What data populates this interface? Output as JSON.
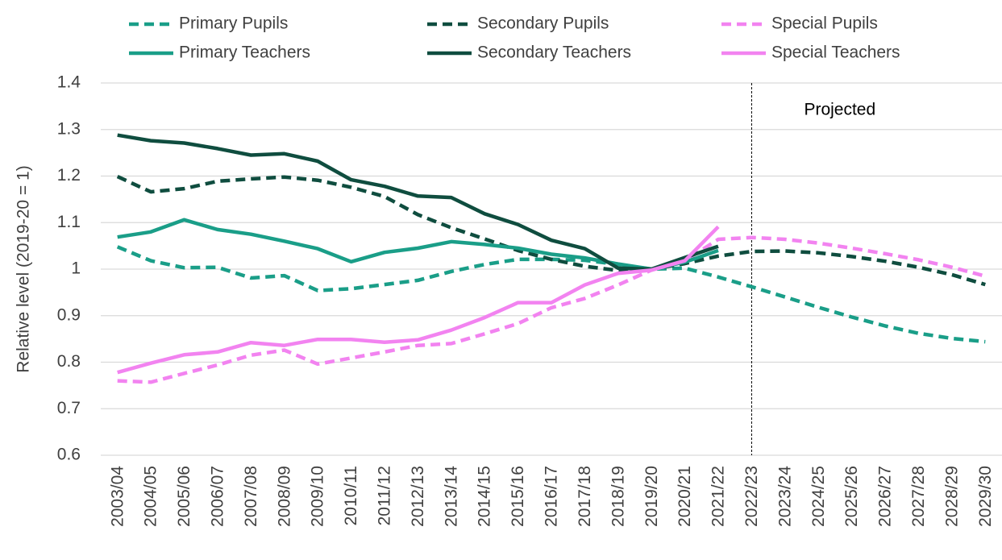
{
  "chart_data": {
    "type": "line",
    "y_label": "Relative level (2019-20 = 1)",
    "categories": [
      "2003/04",
      "2004/05",
      "2005/06",
      "2006/07",
      "2007/08",
      "2008/09",
      "2009/10",
      "2010/11",
      "2011/12",
      "2012/13",
      "2013/14",
      "2014/15",
      "2015/16",
      "2016/17",
      "2017/18",
      "2018/19",
      "2019/20",
      "2020/21",
      "2021/22",
      "2022/23",
      "2023/24",
      "2024/25",
      "2025/26",
      "2026/27",
      "2027/28",
      "2028/29",
      "2029/30"
    ],
    "series": [
      {
        "name": "Primary Pupils",
        "color": "#1a9e88",
        "dashed": true,
        "values": [
          1.048,
          1.018,
          1.003,
          1.004,
          0.981,
          0.986,
          0.954,
          0.958,
          0.967,
          0.976,
          0.995,
          1.01,
          1.021,
          1.021,
          1.019,
          1.01,
          1.0,
          1.002,
          0.983,
          0.962,
          0.94,
          0.918,
          0.897,
          0.878,
          0.862,
          0.851,
          0.844
        ]
      },
      {
        "name": "Secondary Pupils",
        "color": "#0f4d3f",
        "dashed": true,
        "values": [
          1.199,
          1.166,
          1.173,
          1.189,
          1.194,
          1.198,
          1.191,
          1.176,
          1.156,
          1.117,
          1.089,
          1.065,
          1.04,
          1.021,
          1.006,
          0.997,
          1.0,
          1.012,
          1.028,
          1.038,
          1.039,
          1.035,
          1.027,
          1.017,
          1.004,
          0.988,
          0.967
        ]
      },
      {
        "name": "Special Pupils",
        "color": "#f283f0",
        "dashed": true,
        "values": [
          0.76,
          0.757,
          0.776,
          0.794,
          0.815,
          0.826,
          0.796,
          0.809,
          0.822,
          0.836,
          0.84,
          0.861,
          0.883,
          0.917,
          0.937,
          0.966,
          0.998,
          1.018,
          1.064,
          1.068,
          1.064,
          1.056,
          1.045,
          1.033,
          1.02,
          1.004,
          0.985
        ]
      },
      {
        "name": "Primary Teachers",
        "color": "#1a9e88",
        "dashed": false,
        "values": [
          1.069,
          1.08,
          1.106,
          1.085,
          1.075,
          1.06,
          1.044,
          1.016,
          1.036,
          1.045,
          1.059,
          1.053,
          1.045,
          1.032,
          1.024,
          1.011,
          1.0,
          1.015,
          1.04,
          null,
          null,
          null,
          null,
          null,
          null,
          null,
          null
        ]
      },
      {
        "name": "Secondary Teachers",
        "color": "#0f4d3f",
        "dashed": false,
        "values": [
          1.288,
          1.276,
          1.271,
          1.259,
          1.245,
          1.248,
          1.232,
          1.192,
          1.178,
          1.157,
          1.154,
          1.119,
          1.096,
          1.062,
          1.044,
          1.002,
          1.0,
          1.025,
          1.049,
          null,
          null,
          null,
          null,
          null,
          null,
          null,
          null
        ]
      },
      {
        "name": "Special Teachers",
        "color": "#f283f0",
        "dashed": false,
        "values": [
          0.778,
          0.798,
          0.816,
          0.822,
          0.842,
          0.836,
          0.849,
          0.849,
          0.843,
          0.848,
          0.869,
          0.896,
          0.928,
          0.928,
          0.966,
          0.991,
          0.998,
          1.018,
          1.091,
          null,
          null,
          null,
          null,
          null,
          null,
          null,
          null
        ]
      }
    ],
    "annotations": [
      {
        "text": "Projected",
        "x": "2022/23"
      }
    ],
    "ylim": [
      0.6,
      1.4
    ],
    "yticks": [
      0.6,
      0.7,
      0.8,
      0.9,
      1,
      1.1,
      1.2,
      1.3,
      1.4
    ],
    "grid": true,
    "legend": "top"
  }
}
